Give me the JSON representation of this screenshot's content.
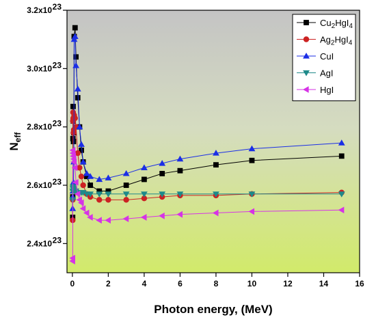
{
  "chart_data": {
    "type": "line",
    "xlabel": "Photon energy, (MeV)",
    "ylabel_main": "N",
    "ylabel_sub": "eff",
    "xlim": [
      -0.3,
      16
    ],
    "ylim": [
      2.3,
      3.2
    ],
    "x_ticks": [
      0,
      2,
      4,
      6,
      8,
      10,
      12,
      14,
      16
    ],
    "x_tick_labels": [
      "0",
      "2",
      "4",
      "6",
      "8",
      "10",
      "12",
      "14",
      "16"
    ],
    "y_ticks": [
      2.4,
      2.6,
      2.8,
      3.0,
      3.2
    ],
    "y_tick_mantissas": [
      "2.4x10",
      "2.6x10",
      "2.8x10",
      "3.0x10",
      "3.2x10"
    ],
    "y_tick_exponent": "23",
    "x": [
      0.015,
      0.02,
      0.03,
      0.04,
      0.05,
      0.06,
      0.08,
      0.1,
      0.15,
      0.2,
      0.3,
      0.4,
      0.5,
      0.6,
      0.8,
      1,
      1.5,
      2,
      3,
      4,
      5,
      6,
      8,
      10,
      15
    ],
    "series": [
      {
        "name": "Cu2HgI4",
        "name_parts": [
          {
            "t": "Cu"
          },
          {
            "t": "2",
            "sub": true
          },
          {
            "t": "HgI"
          },
          {
            "t": "4",
            "sub": true
          }
        ],
        "marker": "square",
        "color": "#000000",
        "values": [
          2.49,
          2.56,
          2.76,
          2.87,
          2.82,
          2.75,
          2.78,
          3.11,
          3.14,
          3.04,
          2.9,
          2.8,
          2.72,
          2.68,
          2.63,
          2.6,
          2.58,
          2.58,
          2.6,
          2.62,
          2.64,
          2.65,
          2.67,
          2.685,
          2.7
        ]
      },
      {
        "name": "Ag2HgI4",
        "name_parts": [
          {
            "t": "Ag"
          },
          {
            "t": "2",
            "sub": true
          },
          {
            "t": "HgI"
          },
          {
            "t": "4",
            "sub": true
          }
        ],
        "marker": "circle",
        "color": "#cc2222",
        "values": [
          2.48,
          2.55,
          2.82,
          2.85,
          2.83,
          2.78,
          2.79,
          2.84,
          2.83,
          2.8,
          2.71,
          2.66,
          2.63,
          2.6,
          2.57,
          2.56,
          2.55,
          2.55,
          2.55,
          2.555,
          2.56,
          2.565,
          2.565,
          2.57,
          2.575
        ]
      },
      {
        "name": "CuI",
        "name_parts": [
          {
            "t": "CuI"
          }
        ],
        "marker": "triangle-up",
        "color": "#1a2ee6",
        "values": [
          2.52,
          2.56,
          2.58,
          2.59,
          2.6,
          2.61,
          2.68,
          3.1,
          3.11,
          3.01,
          2.93,
          2.8,
          2.74,
          2.68,
          2.64,
          2.63,
          2.62,
          2.625,
          2.64,
          2.66,
          2.675,
          2.69,
          2.71,
          2.725,
          2.745
        ]
      },
      {
        "name": "AgI",
        "name_parts": [
          {
            "t": "AgI"
          }
        ],
        "marker": "triangle-down",
        "color": "#1f8a8a",
        "values": [
          2.55,
          2.58,
          2.59,
          2.595,
          2.59,
          2.59,
          2.585,
          2.58,
          2.58,
          2.58,
          2.575,
          2.575,
          2.575,
          2.575,
          2.57,
          2.57,
          2.57,
          2.57,
          2.57,
          2.57,
          2.57,
          2.57,
          2.57,
          2.57,
          2.57
        ]
      },
      {
        "name": "HgI",
        "name_parts": [
          {
            "t": "HgI"
          }
        ],
        "marker": "triangle-left",
        "color": "#d633e6",
        "values": [
          2.34,
          2.35,
          2.72,
          2.71,
          2.7,
          2.7,
          2.69,
          2.68,
          2.66,
          2.61,
          2.57,
          2.55,
          2.54,
          2.52,
          2.505,
          2.49,
          2.48,
          2.48,
          2.485,
          2.49,
          2.495,
          2.5,
          2.505,
          2.51,
          2.515
        ]
      }
    ],
    "legend_position": "top-right",
    "grid": false,
    "background": "gradient gray (top) to yellow-green (bottom)"
  }
}
